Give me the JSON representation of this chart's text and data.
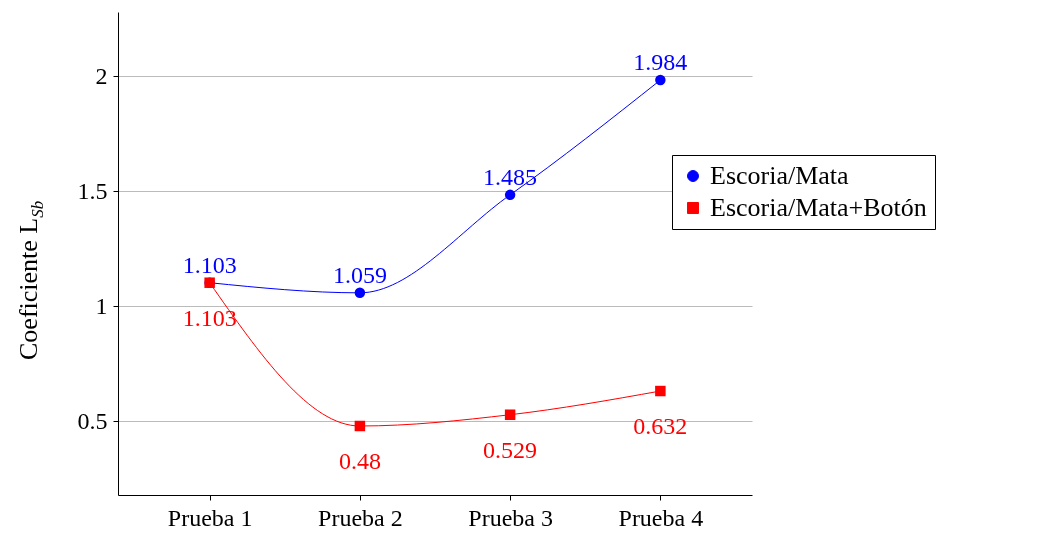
{
  "chart_data": {
    "type": "line",
    "ylabel": "Coeficiente L$_{Sb}$",
    "categories": [
      "Prueba 1",
      "Prueba 2",
      "Prueba 3",
      "Prueba 4"
    ],
    "series": [
      {
        "name": "Escoria/Mata",
        "color": "#0000ff",
        "marker": "circle",
        "values": [
          1.103,
          1.059,
          1.485,
          1.984
        ]
      },
      {
        "name": "Escoria/Mata+Botón",
        "color": "#ff0000",
        "marker": "square",
        "values": [
          1.103,
          0.48,
          0.529,
          0.632
        ]
      }
    ],
    "ylim": [
      0.18,
      2.28
    ],
    "yticks": [
      0.5,
      1,
      1.5,
      2
    ],
    "grid": "y",
    "legend": "right",
    "data_labels": true,
    "line_style": "solid"
  }
}
